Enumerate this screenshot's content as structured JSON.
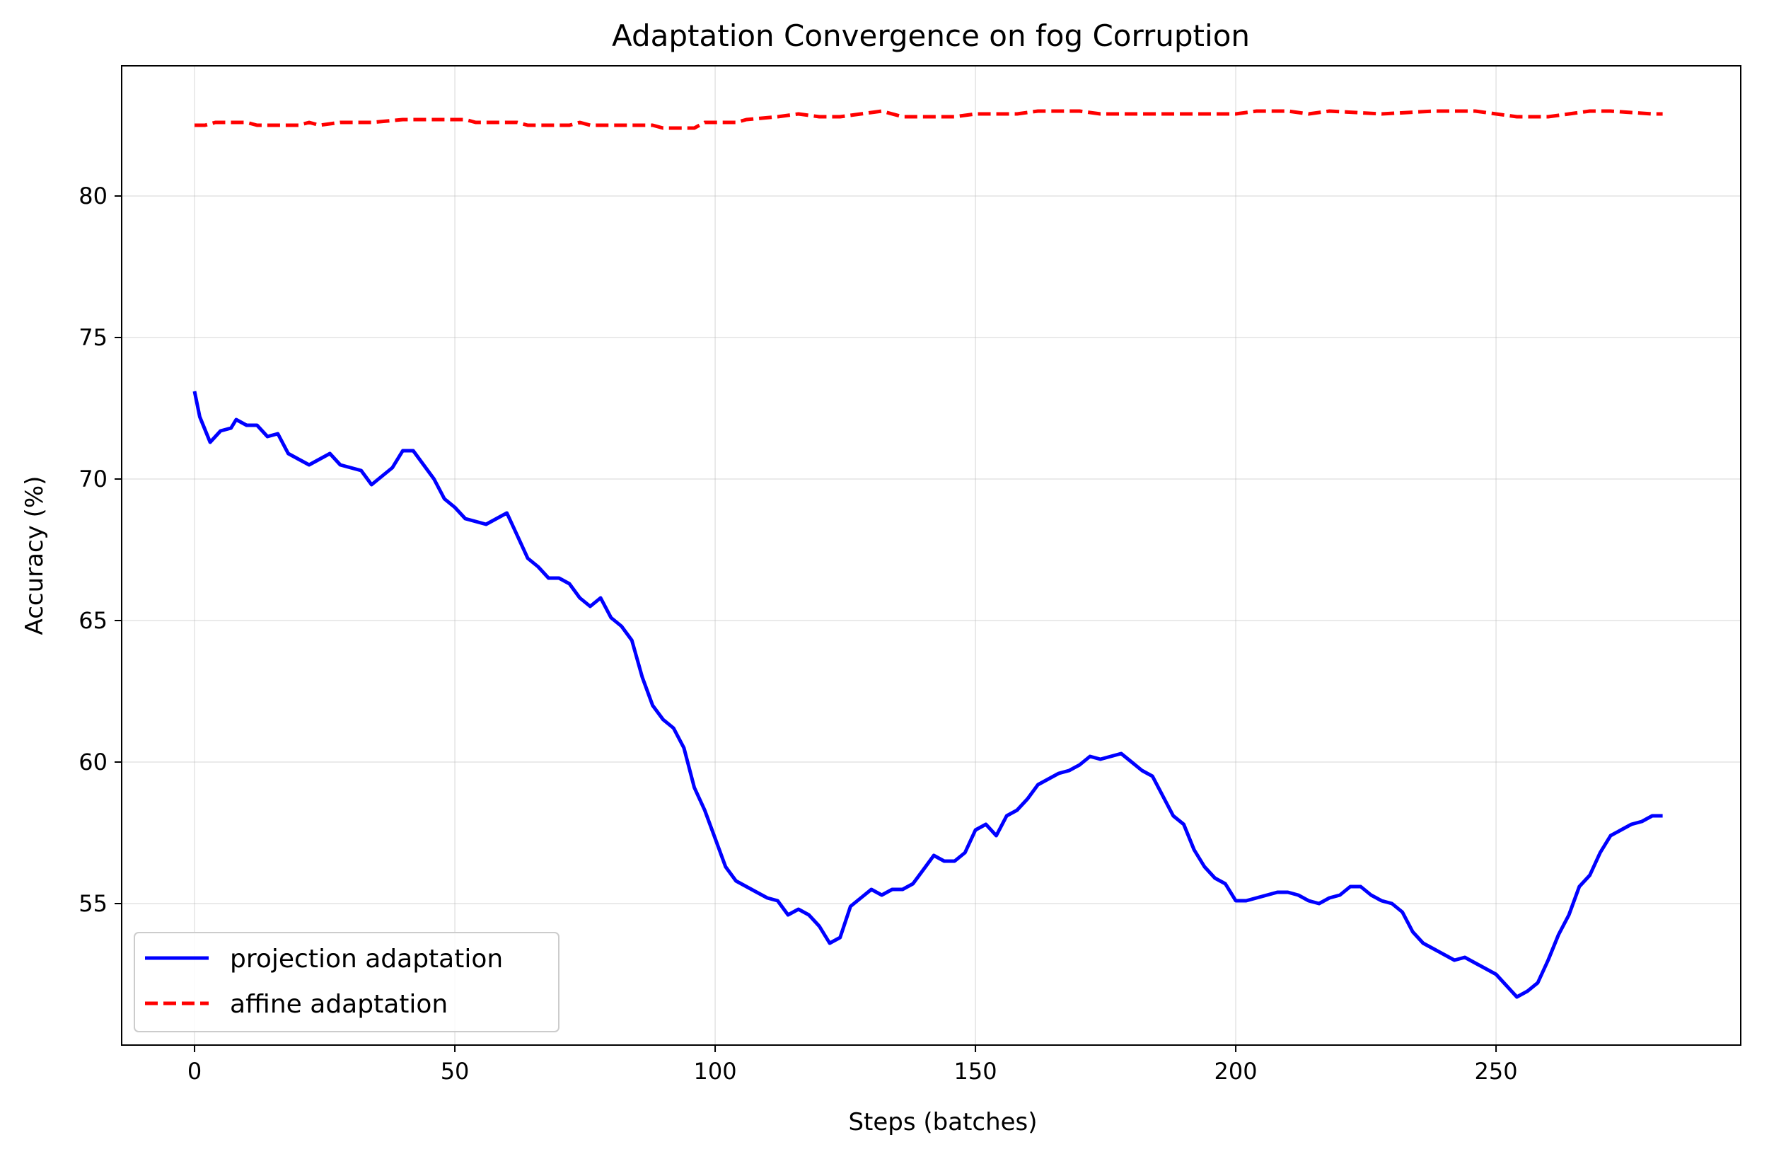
{
  "chart_data": {
    "type": "line",
    "title": "Adaptation Convergence on fog Corruption",
    "xlabel": "Steps (batches)",
    "ylabel": "Accuracy (%)",
    "xlim": [
      -14,
      297
    ],
    "ylim": [
      50,
      84.6
    ],
    "xticks": [
      0,
      50,
      100,
      150,
      200,
      250
    ],
    "yticks": [
      55,
      60,
      65,
      70,
      75,
      80
    ],
    "grid": true,
    "legend": "lower-left",
    "colors": {
      "projection": "#0000ff",
      "affine": "#ff0000"
    },
    "series": [
      {
        "name": "projection adaptation",
        "style": "solid",
        "points": [
          [
            0,
            73.1
          ],
          [
            1,
            72.2
          ],
          [
            3,
            71.3
          ],
          [
            5,
            71.7
          ],
          [
            7,
            71.8
          ],
          [
            8,
            72.1
          ],
          [
            10,
            71.9
          ],
          [
            12,
            71.9
          ],
          [
            14,
            71.5
          ],
          [
            16,
            71.6
          ],
          [
            18,
            70.9
          ],
          [
            20,
            70.7
          ],
          [
            22,
            70.5
          ],
          [
            24,
            70.7
          ],
          [
            26,
            70.9
          ],
          [
            28,
            70.5
          ],
          [
            30,
            70.4
          ],
          [
            32,
            70.3
          ],
          [
            34,
            69.8
          ],
          [
            36,
            70.1
          ],
          [
            38,
            70.4
          ],
          [
            40,
            71.0
          ],
          [
            42,
            71.0
          ],
          [
            44,
            70.5
          ],
          [
            46,
            70.0
          ],
          [
            48,
            69.3
          ],
          [
            50,
            69.0
          ],
          [
            52,
            68.6
          ],
          [
            54,
            68.5
          ],
          [
            56,
            68.4
          ],
          [
            58,
            68.6
          ],
          [
            60,
            68.8
          ],
          [
            62,
            68.0
          ],
          [
            64,
            67.2
          ],
          [
            66,
            66.9
          ],
          [
            68,
            66.5
          ],
          [
            70,
            66.5
          ],
          [
            72,
            66.3
          ],
          [
            74,
            65.8
          ],
          [
            76,
            65.5
          ],
          [
            78,
            65.8
          ],
          [
            80,
            65.1
          ],
          [
            82,
            64.8
          ],
          [
            84,
            64.3
          ],
          [
            86,
            63.0
          ],
          [
            88,
            62.0
          ],
          [
            90,
            61.5
          ],
          [
            92,
            61.2
          ],
          [
            94,
            60.5
          ],
          [
            96,
            59.1
          ],
          [
            98,
            58.3
          ],
          [
            100,
            57.3
          ],
          [
            102,
            56.3
          ],
          [
            104,
            55.8
          ],
          [
            106,
            55.6
          ],
          [
            108,
            55.4
          ],
          [
            110,
            55.2
          ],
          [
            112,
            55.1
          ],
          [
            114,
            54.6
          ],
          [
            116,
            54.8
          ],
          [
            118,
            54.6
          ],
          [
            120,
            54.2
          ],
          [
            122,
            53.6
          ],
          [
            124,
            53.8
          ],
          [
            126,
            54.9
          ],
          [
            128,
            55.2
          ],
          [
            130,
            55.5
          ],
          [
            132,
            55.3
          ],
          [
            134,
            55.5
          ],
          [
            136,
            55.5
          ],
          [
            138,
            55.7
          ],
          [
            140,
            56.2
          ],
          [
            142,
            56.7
          ],
          [
            144,
            56.5
          ],
          [
            146,
            56.5
          ],
          [
            148,
            56.8
          ],
          [
            150,
            57.6
          ],
          [
            152,
            57.8
          ],
          [
            154,
            57.4
          ],
          [
            156,
            58.1
          ],
          [
            158,
            58.3
          ],
          [
            160,
            58.7
          ],
          [
            162,
            59.2
          ],
          [
            164,
            59.4
          ],
          [
            166,
            59.6
          ],
          [
            168,
            59.7
          ],
          [
            170,
            59.9
          ],
          [
            172,
            60.2
          ],
          [
            174,
            60.1
          ],
          [
            176,
            60.2
          ],
          [
            178,
            60.3
          ],
          [
            180,
            60.0
          ],
          [
            182,
            59.7
          ],
          [
            184,
            59.5
          ],
          [
            186,
            58.8
          ],
          [
            188,
            58.1
          ],
          [
            190,
            57.8
          ],
          [
            192,
            56.9
          ],
          [
            194,
            56.3
          ],
          [
            196,
            55.9
          ],
          [
            198,
            55.7
          ],
          [
            200,
            55.1
          ],
          [
            202,
            55.1
          ],
          [
            204,
            55.2
          ],
          [
            206,
            55.3
          ],
          [
            208,
            55.4
          ],
          [
            210,
            55.4
          ],
          [
            212,
            55.3
          ],
          [
            214,
            55.1
          ],
          [
            216,
            55.0
          ],
          [
            218,
            55.2
          ],
          [
            220,
            55.3
          ],
          [
            222,
            55.6
          ],
          [
            224,
            55.6
          ],
          [
            226,
            55.3
          ],
          [
            228,
            55.1
          ],
          [
            230,
            55.0
          ],
          [
            232,
            54.7
          ],
          [
            234,
            54.0
          ],
          [
            236,
            53.6
          ],
          [
            238,
            53.4
          ],
          [
            240,
            53.2
          ],
          [
            242,
            53.0
          ],
          [
            244,
            53.1
          ],
          [
            246,
            52.9
          ],
          [
            248,
            52.7
          ],
          [
            250,
            52.5
          ],
          [
            252,
            52.1
          ],
          [
            254,
            51.7
          ],
          [
            256,
            51.9
          ],
          [
            258,
            52.2
          ],
          [
            260,
            53.0
          ],
          [
            262,
            53.9
          ],
          [
            264,
            54.6
          ],
          [
            266,
            55.6
          ],
          [
            268,
            56.0
          ],
          [
            270,
            56.8
          ],
          [
            272,
            57.4
          ],
          [
            274,
            57.6
          ],
          [
            276,
            57.8
          ],
          [
            278,
            57.9
          ],
          [
            280,
            58.1
          ],
          [
            282,
            58.1
          ]
        ]
      },
      {
        "name": "affine adaptation",
        "style": "dashed",
        "points": [
          [
            0,
            82.5
          ],
          [
            2,
            82.5
          ],
          [
            4,
            82.6
          ],
          [
            10,
            82.6
          ],
          [
            12,
            82.5
          ],
          [
            20,
            82.5
          ],
          [
            22,
            82.6
          ],
          [
            24,
            82.5
          ],
          [
            28,
            82.6
          ],
          [
            34,
            82.6
          ],
          [
            40,
            82.7
          ],
          [
            46,
            82.7
          ],
          [
            52,
            82.7
          ],
          [
            54,
            82.6
          ],
          [
            62,
            82.6
          ],
          [
            64,
            82.5
          ],
          [
            72,
            82.5
          ],
          [
            74,
            82.6
          ],
          [
            76,
            82.5
          ],
          [
            80,
            82.5
          ],
          [
            88,
            82.5
          ],
          [
            90,
            82.4
          ],
          [
            96,
            82.4
          ],
          [
            98,
            82.6
          ],
          [
            104,
            82.6
          ],
          [
            106,
            82.7
          ],
          [
            112,
            82.8
          ],
          [
            116,
            82.9
          ],
          [
            120,
            82.8
          ],
          [
            124,
            82.8
          ],
          [
            128,
            82.9
          ],
          [
            132,
            83.0
          ],
          [
            136,
            82.8
          ],
          [
            146,
            82.8
          ],
          [
            150,
            82.9
          ],
          [
            158,
            82.9
          ],
          [
            162,
            83.0
          ],
          [
            170,
            83.0
          ],
          [
            174,
            82.9
          ],
          [
            200,
            82.9
          ],
          [
            204,
            83.0
          ],
          [
            210,
            83.0
          ],
          [
            214,
            82.9
          ],
          [
            218,
            83.0
          ],
          [
            228,
            82.9
          ],
          [
            238,
            83.0
          ],
          [
            246,
            83.0
          ],
          [
            250,
            82.9
          ],
          [
            254,
            82.8
          ],
          [
            260,
            82.8
          ],
          [
            264,
            82.9
          ],
          [
            268,
            83.0
          ],
          [
            272,
            83.0
          ],
          [
            280,
            82.9
          ],
          [
            282,
            82.9
          ]
        ]
      }
    ]
  }
}
